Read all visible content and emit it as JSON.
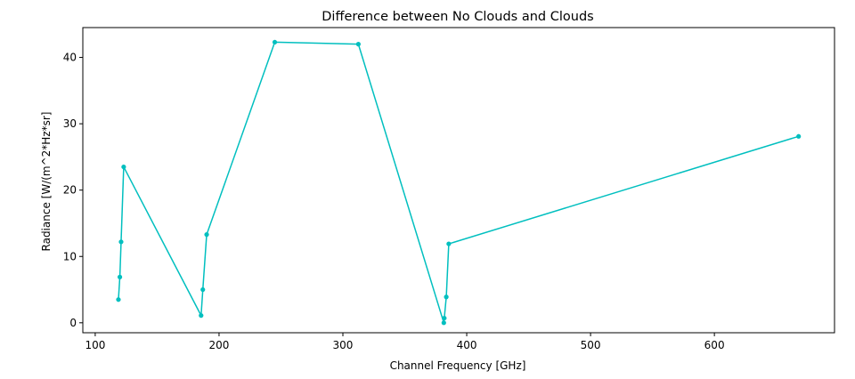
{
  "chart_data": {
    "type": "line",
    "title": "Difference between No Clouds and Clouds",
    "xlabel": "Channel Frequency [GHz]",
    "ylabel": "Radiance [W/(m^2*Hz*sr]",
    "xlim": [
      90,
      697
    ],
    "ylim": [
      -1.5,
      44.5
    ],
    "xticks": [
      100,
      200,
      300,
      400,
      500,
      600
    ],
    "yticks": [
      0,
      10,
      20,
      30,
      40
    ],
    "grid": false,
    "series": [
      {
        "color": "#00bfbf",
        "marker": "circle",
        "points": [
          {
            "x": 118.75,
            "y": 3.5
          },
          {
            "x": 119.9,
            "y": 6.9
          },
          {
            "x": 120.9,
            "y": 12.2
          },
          {
            "x": 123.0,
            "y": 23.5
          },
          {
            "x": 185.5,
            "y": 1.1
          },
          {
            "x": 186.9,
            "y": 5.0
          },
          {
            "x": 190.0,
            "y": 13.3
          },
          {
            "x": 245.0,
            "y": 42.3
          },
          {
            "x": 312.5,
            "y": 42.0
          },
          {
            "x": 381.5,
            "y": 0.0
          },
          {
            "x": 381.9,
            "y": 0.7
          },
          {
            "x": 383.5,
            "y": 3.9
          },
          {
            "x": 385.5,
            "y": 11.9
          },
          {
            "x": 668.0,
            "y": 28.1
          }
        ]
      }
    ]
  }
}
